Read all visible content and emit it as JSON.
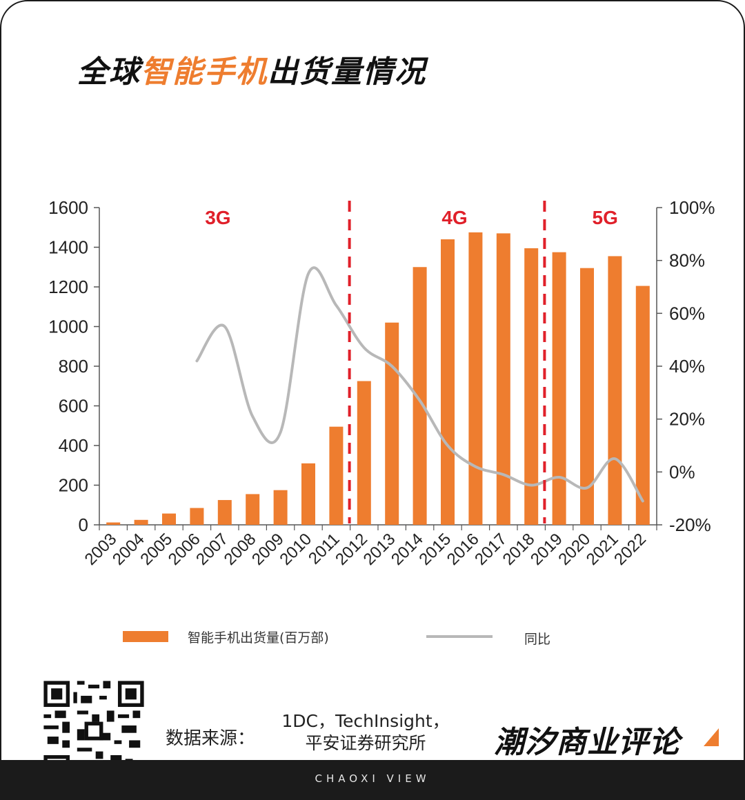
{
  "title": {
    "part1": "全球",
    "part2": "智能手机",
    "part3": "出货量情况"
  },
  "chart_data": {
    "type": "bar",
    "categories": [
      "2003",
      "2004",
      "2005",
      "2006",
      "2007",
      "2008",
      "2009",
      "2010",
      "2011",
      "2012",
      "2013",
      "2014",
      "2015",
      "2016",
      "2017",
      "2018",
      "2019",
      "2020",
      "2021",
      "2022"
    ],
    "series": [
      {
        "name": "智能手机出货量(百万部)",
        "type": "bar",
        "axis": "left",
        "color": "#ee7d2f",
        "values": [
          12,
          25,
          57,
          85,
          125,
          155,
          175,
          310,
          495,
          725,
          1020,
          1300,
          1440,
          1475,
          1470,
          1395,
          1375,
          1295,
          1355,
          1205
        ]
      },
      {
        "name": "同比",
        "type": "line",
        "axis": "right",
        "color": "#b8b8b8",
        "x": [
          "2006",
          "2007",
          "2008",
          "2009",
          "2010",
          "2011",
          "2012",
          "2013",
          "2014",
          "2015",
          "2016",
          "2017",
          "2018",
          "2019",
          "2020",
          "2021",
          "2022"
        ],
        "values": [
          42,
          55,
          21,
          15,
          75,
          63,
          47,
          40,
          27,
          10,
          2,
          -1,
          -5,
          -2,
          -6,
          5,
          -11
        ]
      }
    ],
    "y_left": {
      "ylim": [
        0,
        1600
      ],
      "ticks": [
        0,
        200,
        400,
        600,
        800,
        1000,
        1200,
        1400,
        1600
      ]
    },
    "y_right": {
      "ylim": [
        -20,
        100
      ],
      "ticks": [
        "-20%",
        "0%",
        "20%",
        "40%",
        "60%",
        "80%",
        "100%"
      ]
    },
    "eras": [
      {
        "label": "3G",
        "color": "#e0202a"
      },
      {
        "label": "4G",
        "color": "#e0202a"
      },
      {
        "label": "5G",
        "color": "#e0202a"
      }
    ],
    "dividers": [
      {
        "after_category": "2011",
        "color": "#e0202a"
      },
      {
        "after_category": "2018",
        "color": "#e0202a"
      }
    ],
    "grid": false,
    "legend": "bottom"
  },
  "source": {
    "label": "数据来源：",
    "text_line1": "1DC，TechInsight，",
    "text_line2": "平安证券研究所"
  },
  "brand": {
    "name": "潮汐商业评论",
    "footer": "CHAOXI VIEW"
  }
}
